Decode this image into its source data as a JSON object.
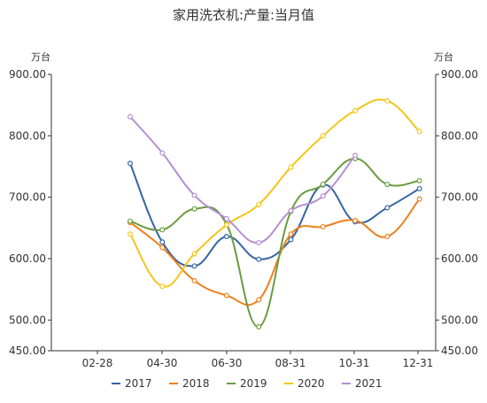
{
  "chart_data": {
    "type": "line",
    "title": "家用洗衣机:产量:当月值",
    "unit_left": "万台",
    "unit_right": "万台",
    "ylim": [
      450,
      900
    ],
    "yticks": [
      "450.00",
      "500.00",
      "600.00",
      "700.00",
      "800.00",
      "900.00"
    ],
    "xticks": [
      "02-28",
      "04-30",
      "06-30",
      "08-31",
      "10-31",
      "12-31"
    ],
    "categories": [
      "03",
      "04",
      "05",
      "06",
      "07",
      "08",
      "09",
      "10",
      "11",
      "12"
    ],
    "legend_position": "bottom",
    "series": [
      {
        "name": "2017",
        "color": "#3465a4",
        "values": [
          755,
          627,
          588,
          636,
          599,
          631,
          720,
          660,
          683,
          714
        ]
      },
      {
        "name": "2018",
        "color": "#ef7f1a",
        "values": [
          659,
          618,
          564,
          540,
          533,
          640,
          652,
          662,
          636,
          697
        ]
      },
      {
        "name": "2019",
        "color": "#6a9b3f",
        "values": [
          661,
          647,
          681,
          656,
          489,
          677,
          721,
          763,
          721,
          727
        ]
      },
      {
        "name": "2020",
        "color": "#f5c518",
        "values": [
          640,
          555,
          608,
          655,
          688,
          749,
          800,
          841,
          857,
          807
        ]
      },
      {
        "name": "2021",
        "color": "#b48fd1",
        "values": [
          831,
          772,
          703,
          665,
          626,
          678,
          702,
          768,
          null,
          null
        ]
      }
    ]
  }
}
